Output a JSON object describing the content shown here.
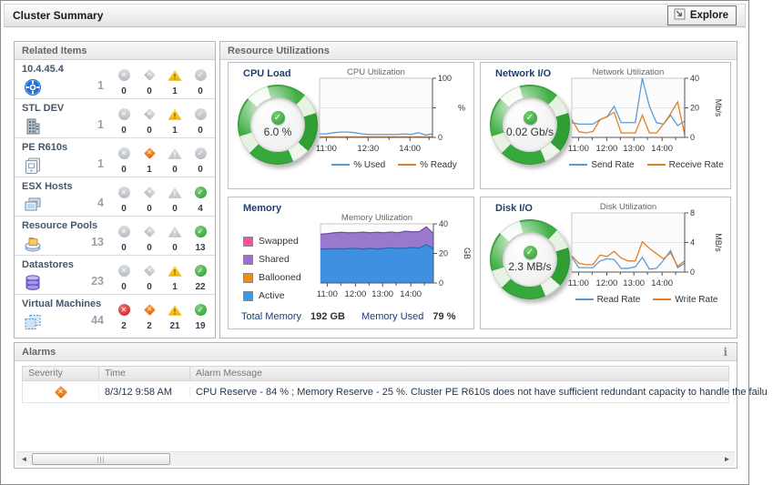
{
  "header": {
    "title": "Cluster Summary",
    "explore": "Explore"
  },
  "related": {
    "title": "Related Items",
    "items": [
      {
        "name": "10.4.45.4",
        "icon": "vcenter",
        "count": "1",
        "statuses": [
          [
            "fatal",
            0,
            false
          ],
          [
            "critical",
            0,
            false
          ],
          [
            "warning",
            1,
            true
          ],
          [
            "normal",
            0,
            false
          ]
        ]
      },
      {
        "name": "STL DEV",
        "icon": "datacenter",
        "count": "1",
        "statuses": [
          [
            "fatal",
            0,
            false
          ],
          [
            "critical",
            0,
            false
          ],
          [
            "warning",
            1,
            true
          ],
          [
            "normal",
            0,
            false
          ]
        ]
      },
      {
        "name": "PE R610s",
        "icon": "cluster",
        "count": "1",
        "statuses": [
          [
            "fatal",
            0,
            false
          ],
          [
            "critical",
            1,
            true
          ],
          [
            "warning",
            0,
            false
          ],
          [
            "normal",
            0,
            false
          ]
        ]
      },
      {
        "name": "ESX Hosts",
        "icon": "host",
        "count": "4",
        "statuses": [
          [
            "fatal",
            0,
            false
          ],
          [
            "critical",
            0,
            false
          ],
          [
            "warning",
            0,
            false
          ],
          [
            "normal",
            4,
            true
          ]
        ]
      },
      {
        "name": "Resource Pools",
        "icon": "pool",
        "count": "13",
        "statuses": [
          [
            "fatal",
            0,
            false
          ],
          [
            "critical",
            0,
            false
          ],
          [
            "warning",
            0,
            false
          ],
          [
            "normal",
            13,
            true
          ]
        ]
      },
      {
        "name": "Datastores",
        "icon": "datastore",
        "count": "23",
        "statuses": [
          [
            "fatal",
            0,
            false
          ],
          [
            "critical",
            0,
            false
          ],
          [
            "warning",
            1,
            true
          ],
          [
            "normal",
            22,
            true
          ]
        ]
      },
      {
        "name": "Virtual Machines",
        "icon": "vm",
        "count": "44",
        "statuses": [
          [
            "fatal",
            2,
            true
          ],
          [
            "critical",
            2,
            true
          ],
          [
            "warning",
            21,
            true
          ],
          [
            "normal",
            19,
            true
          ]
        ]
      }
    ]
  },
  "resources": {
    "title": "Resource Utilizations",
    "cpu": {
      "title": "CPU Load",
      "gauge": "6.0 %"
    },
    "network": {
      "title": "Network I/O",
      "gauge": "0.02 Gb/s"
    },
    "memory": {
      "title": "Memory",
      "footer": [
        {
          "label": "Total Memory",
          "value": "192 GB"
        },
        {
          "label": "Memory Used",
          "value": "79 %"
        }
      ]
    },
    "disk": {
      "title": "Disk I/O",
      "gauge": "2.3 MB/s"
    }
  },
  "chart_data": [
    {
      "id": "cpu",
      "type": "line",
      "title": "CPU Utilization",
      "unit": "%",
      "unit_rotated": false,
      "ylim": [
        0,
        100
      ],
      "yticks": [
        {
          "v": 0,
          "label": "0"
        },
        {
          "v": 50,
          "label": ""
        },
        {
          "v": 100,
          "label": "100"
        }
      ],
      "xticks": [
        {
          "f": 0.06,
          "label": "11:00"
        },
        {
          "f": 0.43,
          "label": "12:30"
        },
        {
          "f": 0.8,
          "label": "14:00"
        }
      ],
      "xminor": [
        0.245,
        0.615,
        0.97
      ],
      "series": [
        {
          "name": "% Used",
          "color": "#5b9bd5",
          "values": [
            6,
            6,
            8,
            9,
            9,
            8,
            6,
            5,
            5,
            5,
            5,
            5,
            6,
            5,
            8,
            4,
            6
          ]
        },
        {
          "name": "% Ready",
          "color": "#e0812a",
          "values": [
            1,
            1,
            1,
            1,
            1,
            1,
            1,
            1,
            1,
            1,
            1,
            1,
            1,
            1,
            1,
            1,
            1
          ]
        }
      ]
    },
    {
      "id": "network",
      "type": "line",
      "title": "Network Utilization",
      "unit": "Mb/s",
      "unit_rotated": true,
      "ylim": [
        0,
        40
      ],
      "yticks": [
        {
          "v": 0,
          "label": "0"
        },
        {
          "v": 20,
          "label": "20"
        },
        {
          "v": 40,
          "label": "40"
        }
      ],
      "xticks": [
        {
          "f": 0.06,
          "label": "11:00"
        },
        {
          "f": 0.31,
          "label": "12:00"
        },
        {
          "f": 0.55,
          "label": "13:00"
        },
        {
          "f": 0.8,
          "label": "14:00"
        }
      ],
      "xminor": [
        0.18,
        0.43,
        0.67,
        0.92
      ],
      "series": [
        {
          "name": "Send Rate",
          "color": "#5b9bd5",
          "values": [
            10,
            9,
            9,
            9,
            12,
            14,
            21,
            10,
            10,
            10,
            40,
            21,
            10,
            9,
            15,
            8,
            11
          ]
        },
        {
          "name": "Receive Rate",
          "color": "#e0812a",
          "values": [
            12,
            4,
            3,
            4,
            12,
            14,
            17,
            3,
            3,
            3,
            15,
            3,
            3,
            9,
            16,
            24,
            2
          ]
        }
      ]
    },
    {
      "id": "memory",
      "type": "stacked",
      "title": "Memory Utilization",
      "unit": "GB",
      "unit_rotated": true,
      "ylim": [
        0,
        40
      ],
      "yticks": [
        {
          "v": 0,
          "label": "0"
        },
        {
          "v": 20,
          "label": "20"
        },
        {
          "v": 40,
          "label": "40"
        }
      ],
      "xticks": [
        {
          "f": 0.06,
          "label": "11:00"
        },
        {
          "f": 0.31,
          "label": "12:00"
        },
        {
          "f": 0.55,
          "label": "13:00"
        },
        {
          "f": 0.8,
          "label": "14:00"
        }
      ],
      "xminor": [
        0.18,
        0.43,
        0.67,
        0.92
      ],
      "series": [
        {
          "name": "Shared",
          "color": "#6f4fa0",
          "fill": "#9a78cc",
          "values": [
            33,
            33.4,
            34,
            34.3,
            34,
            34,
            34.4,
            34,
            34.3,
            34,
            34.5,
            34,
            35,
            34.6,
            34.8,
            38,
            33.4
          ]
        },
        {
          "name": "Active",
          "color": "#1f6bb5",
          "fill": "#4090e2",
          "values": [
            23,
            23,
            23.2,
            23,
            23.3,
            23.4,
            23,
            23.4,
            23,
            23.3,
            23.8,
            23.4,
            23.5,
            24,
            23.6,
            26,
            23.2
          ]
        }
      ],
      "side_legend": [
        {
          "label": "Swapped",
          "color": "#f0559b"
        },
        {
          "label": "Shared",
          "color": "#9a6fd0"
        },
        {
          "label": "Ballooned",
          "color": "#ef8d0e"
        },
        {
          "label": "Active",
          "color": "#3b9ae8"
        }
      ]
    },
    {
      "id": "disk",
      "type": "line",
      "title": "Disk Utilization",
      "unit": "MB/s",
      "unit_rotated": true,
      "ylim": [
        0,
        8
      ],
      "yticks": [
        {
          "v": 0,
          "label": "0"
        },
        {
          "v": 4,
          "label": "4"
        },
        {
          "v": 8,
          "label": "8"
        }
      ],
      "xticks": [
        {
          "f": 0.06,
          "label": "11:00"
        },
        {
          "f": 0.31,
          "label": "12:00"
        },
        {
          "f": 0.55,
          "label": "13:00"
        },
        {
          "f": 0.8,
          "label": "14:00"
        }
      ],
      "xminor": [
        0.18,
        0.43,
        0.67,
        0.92
      ],
      "series": [
        {
          "name": "Read Rate",
          "color": "#5b9bd5",
          "values": [
            2,
            0.6,
            0.6,
            0.6,
            1.5,
            1.8,
            1.7,
            0.5,
            0.5,
            0.7,
            2,
            0.4,
            0.5,
            1.6,
            2.9,
            0.6,
            1.2
          ]
        },
        {
          "name": "Write Rate",
          "color": "#e0812a",
          "values": [
            2.2,
            1.2,
            1,
            1,
            2.3,
            2.1,
            2.8,
            1.9,
            1.5,
            1.5,
            4.1,
            3.2,
            2.5,
            1.8,
            2.6,
            0.8,
            1.5
          ]
        }
      ]
    }
  ],
  "alarms": {
    "title": "Alarms",
    "info": "i",
    "columns": [
      "Severity",
      "Time",
      "Alarm Message"
    ],
    "rows": [
      {
        "severity": "critical",
        "time": "8/3/12 9:58 AM",
        "message": "CPU Reserve - 84 % ; Memory Reserve - 25 %. Cluster PE R610s does not have sufficient redundant capacity to handle the failu"
      }
    ]
  }
}
